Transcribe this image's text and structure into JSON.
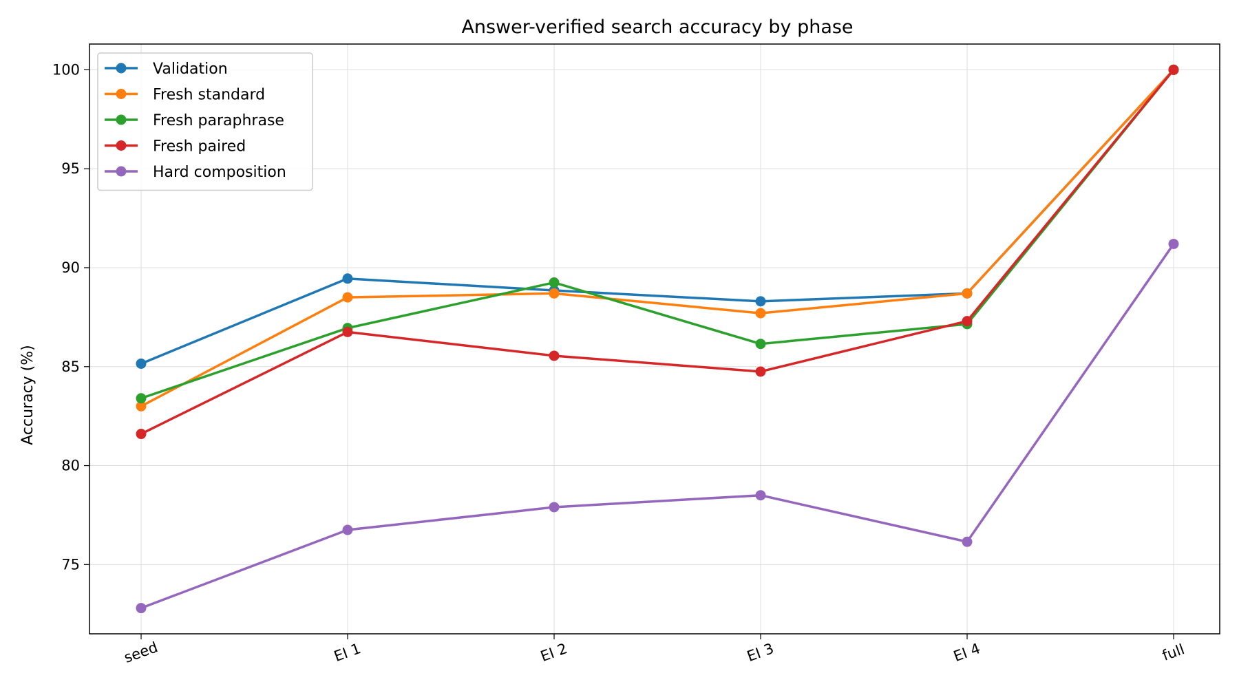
{
  "chart_data": {
    "type": "line",
    "title": "Answer-verified search accuracy by phase",
    "xlabel": "",
    "ylabel": "Accuracy (%)",
    "categories": [
      "seed",
      "EI 1",
      "EI 2",
      "EI 3",
      "EI 4",
      "full"
    ],
    "yticks": [
      75,
      80,
      85,
      90,
      95,
      100
    ],
    "ylim": [
      71.5,
      101.3
    ],
    "grid": true,
    "legend_position": "top-left",
    "series": [
      {
        "name": "Validation",
        "color": "#1f77b4",
        "values": [
          85.15,
          89.45,
          88.85,
          88.3,
          88.7,
          100.0
        ]
      },
      {
        "name": "Fresh standard",
        "color": "#ff7f0e",
        "values": [
          83.0,
          88.5,
          88.7,
          87.7,
          88.7,
          100.0
        ]
      },
      {
        "name": "Fresh paraphrase",
        "color": "#2ca02c",
        "values": [
          83.4,
          86.95,
          89.25,
          86.15,
          87.15,
          100.0
        ]
      },
      {
        "name": "Fresh paired",
        "color": "#d62728",
        "values": [
          81.6,
          86.75,
          85.55,
          84.75,
          87.3,
          100.0
        ]
      },
      {
        "name": "Hard composition",
        "color": "#9467bd",
        "values": [
          72.8,
          76.75,
          77.9,
          78.5,
          76.15,
          91.2
        ]
      }
    ]
  }
}
